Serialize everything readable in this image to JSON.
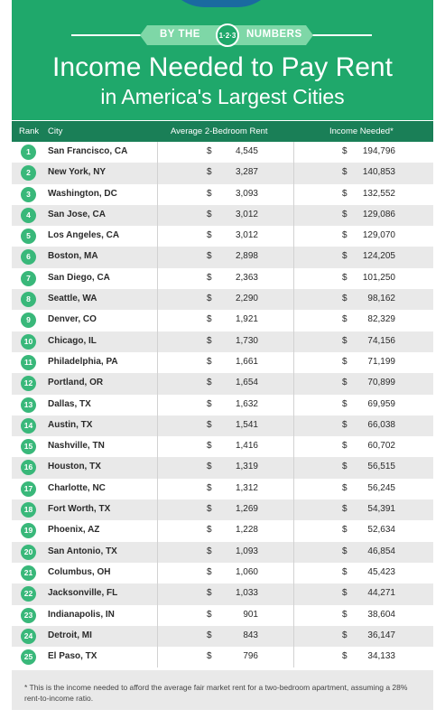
{
  "header": {
    "banner_left": "BY THE",
    "banner_logo": "1·2·3",
    "banner_right": "NUMBERS",
    "title_line1": "Income Needed to Pay Rent",
    "title_line2": "in America's Largest Cities"
  },
  "table": {
    "columns": [
      "Rank",
      "City",
      "Average 2-Bedroom Rent",
      "Income Needed*"
    ],
    "rows": [
      {
        "rank": "1",
        "city": "San Francisco, CA",
        "rent": "4,545",
        "income": "194,796"
      },
      {
        "rank": "2",
        "city": "New York, NY",
        "rent": "3,287",
        "income": "140,853"
      },
      {
        "rank": "3",
        "city": "Washington, DC",
        "rent": "3,093",
        "income": "132,552"
      },
      {
        "rank": "4",
        "city": "San Jose, CA",
        "rent": "3,012",
        "income": "129,086"
      },
      {
        "rank": "5",
        "city": "Los Angeles, CA",
        "rent": "3,012",
        "income": "129,070"
      },
      {
        "rank": "6",
        "city": "Boston, MA",
        "rent": "2,898",
        "income": "124,205"
      },
      {
        "rank": "7",
        "city": "San Diego, CA",
        "rent": "2,363",
        "income": "101,250"
      },
      {
        "rank": "8",
        "city": "Seattle, WA",
        "rent": "2,290",
        "income": "98,162"
      },
      {
        "rank": "9",
        "city": "Denver, CO",
        "rent": "1,921",
        "income": "82,329"
      },
      {
        "rank": "10",
        "city": "Chicago, IL",
        "rent": "1,730",
        "income": "74,156"
      },
      {
        "rank": "11",
        "city": "Philadelphia, PA",
        "rent": "1,661",
        "income": "71,199"
      },
      {
        "rank": "12",
        "city": "Portland, OR",
        "rent": "1,654",
        "income": "70,899"
      },
      {
        "rank": "13",
        "city": "Dallas, TX",
        "rent": "1,632",
        "income": "69,959"
      },
      {
        "rank": "14",
        "city": "Austin, TX",
        "rent": "1,541",
        "income": "66,038"
      },
      {
        "rank": "15",
        "city": "Nashville, TN",
        "rent": "1,416",
        "income": "60,702"
      },
      {
        "rank": "16",
        "city": "Houston, TX",
        "rent": "1,319",
        "income": "56,515"
      },
      {
        "rank": "17",
        "city": "Charlotte, NC",
        "rent": "1,312",
        "income": "56,245"
      },
      {
        "rank": "18",
        "city": "Fort Worth, TX",
        "rent": "1,269",
        "income": "54,391"
      },
      {
        "rank": "19",
        "city": "Phoenix, AZ",
        "rent": "1,228",
        "income": "52,634"
      },
      {
        "rank": "20",
        "city": "San Antonio, TX",
        "rent": "1,093",
        "income": "46,854"
      },
      {
        "rank": "21",
        "city": "Columbus, OH",
        "rent": "1,060",
        "income": "45,423"
      },
      {
        "rank": "22",
        "city": "Jacksonville, FL",
        "rent": "1,033",
        "income": "44,271"
      },
      {
        "rank": "23",
        "city": "Indianapolis, IN",
        "rent": "901",
        "income": "38,604"
      },
      {
        "rank": "24",
        "city": "Detroit, MI",
        "rent": "843",
        "income": "36,147"
      },
      {
        "rank": "25",
        "city": "El Paso, TX",
        "rent": "796",
        "income": "34,133"
      }
    ],
    "currency_symbol": "$"
  },
  "footnote": "* This is the income needed to afford the average fair market rent for a two-bedroom apartment, assuming a 28% rent-to-income ratio.",
  "colors": {
    "header_green": "#1fa86b",
    "table_header_green": "#1a7f57",
    "badge_green": "#39b87a",
    "ribbon_green": "#7ed7a7",
    "accent_blue": "#1a6aa0"
  }
}
